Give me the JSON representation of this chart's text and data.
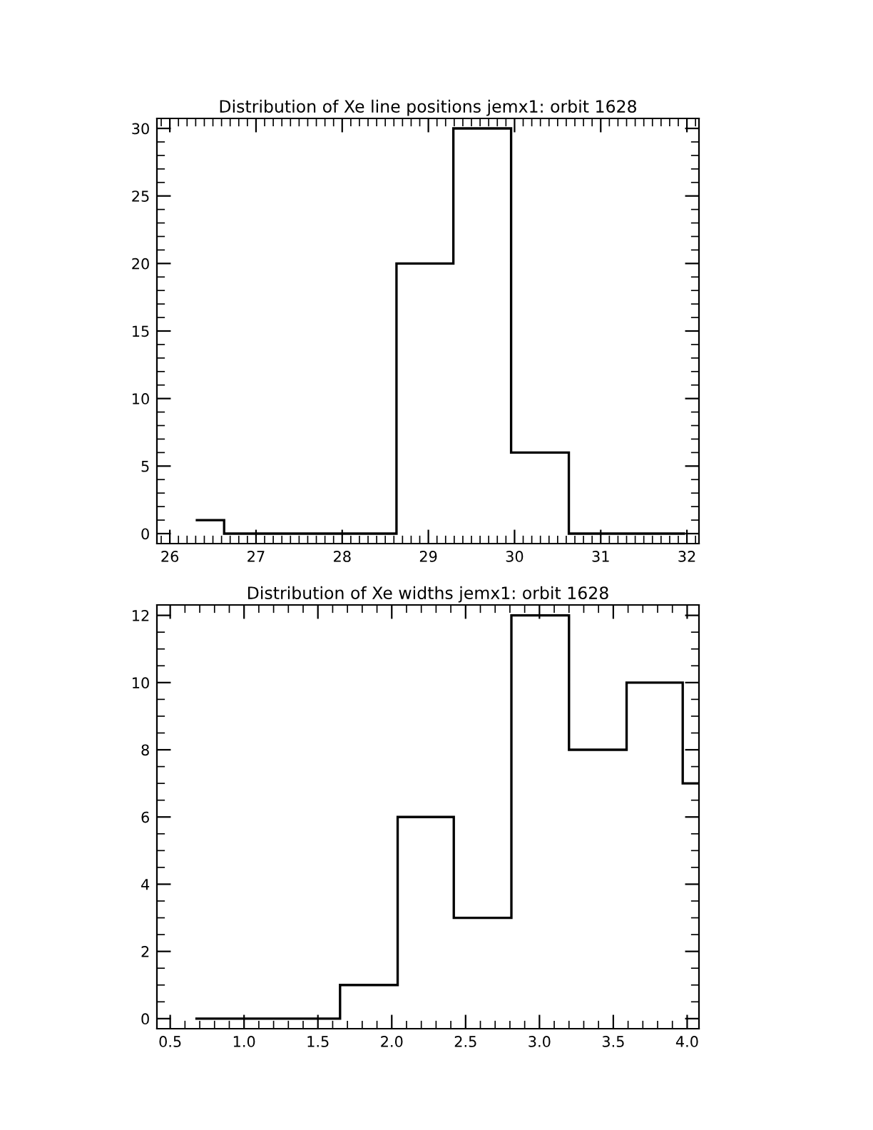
{
  "chart_data": [
    {
      "type": "histogram",
      "title": "Distribution of Xe line positions jemx1: orbit 1628",
      "bins": [
        26.3,
        26.63,
        27.3,
        27.96,
        28.63,
        29.29,
        29.96,
        30.63,
        31.29,
        31.98
      ],
      "values": [
        1,
        0,
        0,
        0,
        20,
        30,
        6,
        0,
        0
      ],
      "color": "#000000",
      "xlim": [
        25.85,
        32.14
      ],
      "xticks": [
        26,
        27,
        28,
        29,
        30,
        31,
        32
      ],
      "ylim": [
        -0.74,
        30.74
      ],
      "yticks": [
        0,
        5,
        10,
        15,
        20,
        25,
        30
      ],
      "grid": false
    },
    {
      "type": "histogram",
      "title": "Distribution of Xe widths jemx1: orbit 1628",
      "bins": [
        0.67,
        1.65,
        2.04,
        2.42,
        2.81,
        3.2,
        3.59,
        3.97,
        4.08
      ],
      "values": [
        0,
        1,
        6,
        3,
        12,
        8,
        10,
        7
      ],
      "color": "#000000",
      "xlim": [
        0.41,
        4.08
      ],
      "xticks": [
        {
          "value": 0.5,
          "label": "0.5"
        },
        {
          "value": 1.0,
          "label": "1.0"
        },
        {
          "value": 1.5,
          "label": "1.5"
        },
        {
          "value": 2.0,
          "label": "2.0"
        },
        {
          "value": 2.5,
          "label": "2.5"
        },
        {
          "value": 3.0,
          "label": "3.0"
        },
        {
          "value": 3.5,
          "label": "3.5"
        },
        {
          "value": 4.0,
          "label": "4.0"
        }
      ],
      "ylim": [
        -0.3,
        12.31
      ],
      "yticks": [
        0,
        2,
        4,
        6,
        8,
        10,
        12
      ],
      "grid": false
    }
  ]
}
